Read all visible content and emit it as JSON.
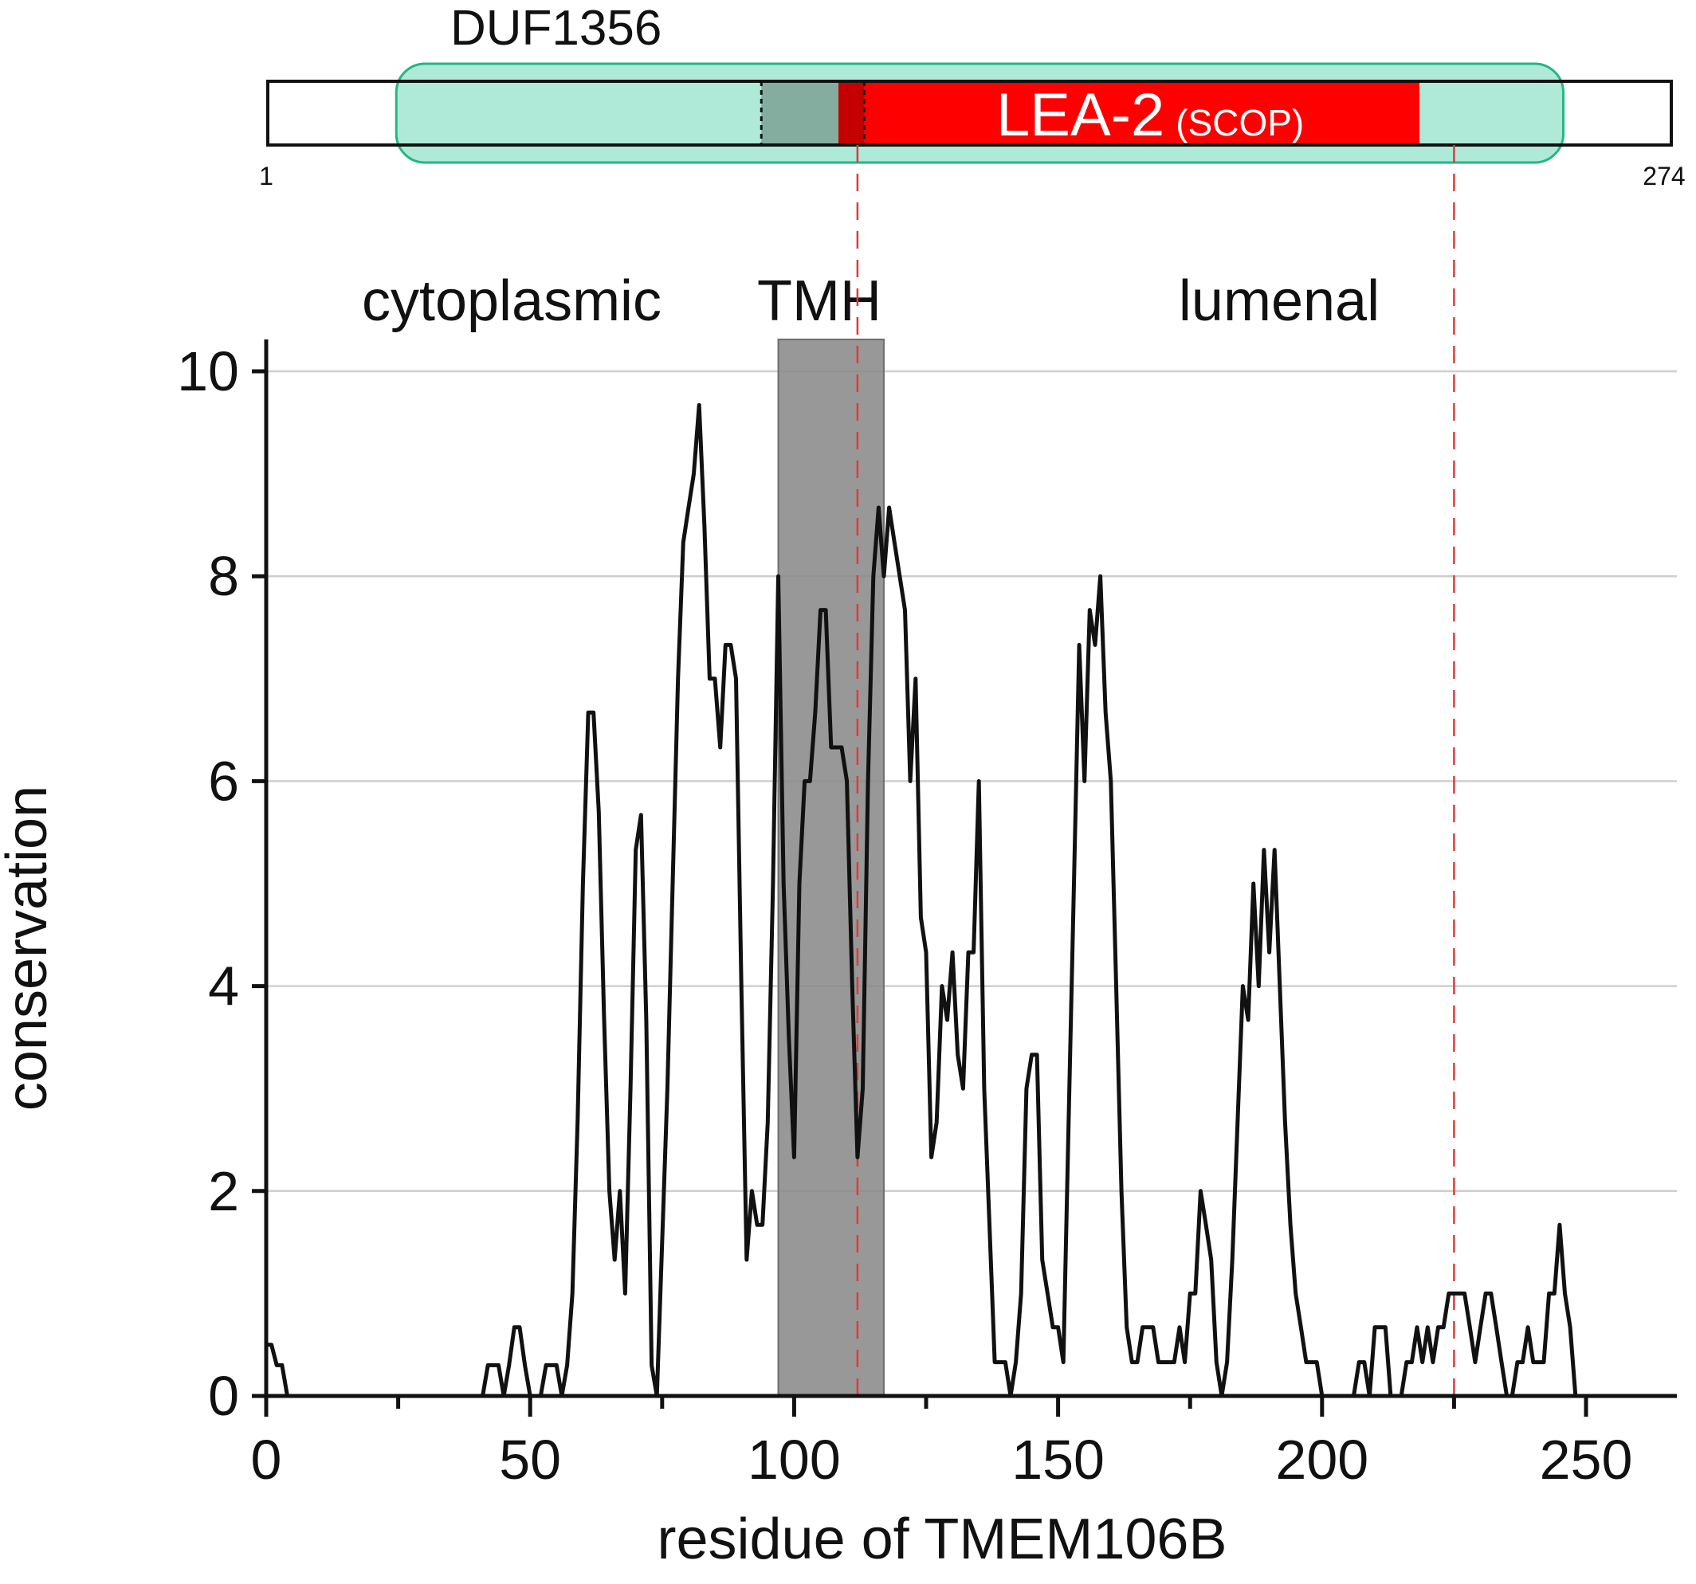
{
  "domain_track": {
    "duf_label": "DUF1356",
    "lea_label": "LEA-2",
    "lea_source": "(SCOP)",
    "start_label": "1",
    "end_label": "274",
    "protein_length": 274,
    "duf_range": [
      26,
      253
    ],
    "lea_range": [
      112,
      225
    ],
    "tm_range": [
      97,
      117
    ],
    "colors": {
      "duf_fill": "#aeead7",
      "duf_border": "#22b783",
      "tm_overlap": "#84ad9f",
      "lea": "#ff0000",
      "lea_tm_overlap": "#c40000",
      "divider": "#e03a3a"
    }
  },
  "region_labels": {
    "cytoplasmic": "cytoplasmic",
    "tmh": "TMH",
    "lumenal": "lumenal"
  },
  "chart_data": {
    "type": "line",
    "title": "",
    "xlabel": "residue of TMEM106B",
    "ylabel": "conservation",
    "xlim": [
      0,
      274
    ],
    "ylim": [
      0,
      10
    ],
    "xticks": [
      0,
      50,
      100,
      150,
      200,
      250
    ],
    "yticks": [
      0,
      2,
      4,
      6,
      8,
      10
    ],
    "grid": "horizontal",
    "shaded_region": {
      "label": "TMH",
      "x": [
        97,
        117
      ],
      "color": "#9a9a9a"
    },
    "reference_lines": [
      112,
      225
    ],
    "series": [
      {
        "color": "#111111",
        "points": [
          [
            0,
            0.5
          ],
          [
            1,
            0.5
          ],
          [
            2,
            0.3
          ],
          [
            3,
            0.3
          ],
          [
            4,
            0
          ],
          [
            40,
            0
          ],
          [
            41,
            0
          ],
          [
            42,
            0.3
          ],
          [
            43,
            0.3
          ],
          [
            44,
            0.3
          ],
          [
            45,
            0
          ],
          [
            46,
            0.3
          ],
          [
            47,
            0.67
          ],
          [
            48,
            0.67
          ],
          [
            49,
            0.3
          ],
          [
            50,
            0
          ],
          [
            52,
            0
          ],
          [
            53,
            0.3
          ],
          [
            54,
            0.3
          ],
          [
            55,
            0.3
          ],
          [
            56,
            0
          ],
          [
            57,
            0.3
          ],
          [
            58,
            1.0
          ],
          [
            59,
            2.7
          ],
          [
            60,
            5.0
          ],
          [
            61,
            6.67
          ],
          [
            62,
            6.67
          ],
          [
            63,
            5.7
          ],
          [
            64,
            3.7
          ],
          [
            65,
            2.0
          ],
          [
            66,
            1.33
          ],
          [
            67,
            2.0
          ],
          [
            68,
            1.0
          ],
          [
            69,
            3.0
          ],
          [
            70,
            5.33
          ],
          [
            71,
            5.67
          ],
          [
            72,
            3.67
          ],
          [
            73,
            0.3
          ],
          [
            74,
            0
          ],
          [
            75,
            1.5
          ],
          [
            76,
            3.0
          ],
          [
            77,
            5.0
          ],
          [
            78,
            7.0
          ],
          [
            79,
            8.33
          ],
          [
            80,
            8.67
          ],
          [
            81,
            9.0
          ],
          [
            82,
            9.67
          ],
          [
            83,
            8.5
          ],
          [
            84,
            7.0
          ],
          [
            85,
            7.0
          ],
          [
            86,
            6.33
          ],
          [
            87,
            7.33
          ],
          [
            88,
            7.33
          ],
          [
            89,
            7.0
          ],
          [
            90,
            4.0
          ],
          [
            91,
            1.33
          ],
          [
            92,
            2.0
          ],
          [
            93,
            1.67
          ],
          [
            94,
            1.67
          ],
          [
            95,
            2.67
          ],
          [
            96,
            5.0
          ],
          [
            97,
            8.0
          ],
          [
            98,
            5.0
          ],
          [
            99,
            3.5
          ],
          [
            100,
            2.33
          ],
          [
            101,
            5.0
          ],
          [
            102,
            6.0
          ],
          [
            103,
            6.0
          ],
          [
            104,
            6.67
          ],
          [
            105,
            7.67
          ],
          [
            106,
            7.67
          ],
          [
            107,
            6.33
          ],
          [
            108,
            6.33
          ],
          [
            109,
            6.33
          ],
          [
            110,
            6.0
          ],
          [
            111,
            4.0
          ],
          [
            112,
            2.33
          ],
          [
            113,
            3.0
          ],
          [
            114,
            6.0
          ],
          [
            115,
            8.0
          ],
          [
            116,
            8.67
          ],
          [
            117,
            8.0
          ],
          [
            118,
            8.67
          ],
          [
            119,
            8.33
          ],
          [
            120,
            8.0
          ],
          [
            121,
            7.67
          ],
          [
            122,
            6.0
          ],
          [
            123,
            7.0
          ],
          [
            124,
            4.67
          ],
          [
            125,
            4.33
          ],
          [
            126,
            2.33
          ],
          [
            127,
            2.67
          ],
          [
            128,
            4.0
          ],
          [
            129,
            3.67
          ],
          [
            130,
            4.33
          ],
          [
            131,
            3.33
          ],
          [
            132,
            3.0
          ],
          [
            133,
            4.33
          ],
          [
            134,
            4.33
          ],
          [
            135,
            6.0
          ],
          [
            136,
            3.0
          ],
          [
            137,
            1.67
          ],
          [
            138,
            0.33
          ],
          [
            139,
            0.33
          ],
          [
            140,
            0.33
          ],
          [
            141,
            0
          ],
          [
            142,
            0.33
          ],
          [
            143,
            1.0
          ],
          [
            144,
            3.0
          ],
          [
            145,
            3.33
          ],
          [
            146,
            3.33
          ],
          [
            147,
            1.33
          ],
          [
            148,
            1.0
          ],
          [
            149,
            0.67
          ],
          [
            150,
            0.67
          ],
          [
            151,
            0.33
          ],
          [
            152,
            2.67
          ],
          [
            153,
            5.0
          ],
          [
            154,
            7.33
          ],
          [
            155,
            6.0
          ],
          [
            156,
            7.67
          ],
          [
            157,
            7.33
          ],
          [
            158,
            8.0
          ],
          [
            159,
            6.67
          ],
          [
            160,
            6.0
          ],
          [
            161,
            4.0
          ],
          [
            162,
            2.0
          ],
          [
            163,
            0.67
          ],
          [
            164,
            0.33
          ],
          [
            165,
            0.33
          ],
          [
            166,
            0.67
          ],
          [
            167,
            0.67
          ],
          [
            168,
            0.67
          ],
          [
            169,
            0.33
          ],
          [
            170,
            0.33
          ],
          [
            171,
            0.33
          ],
          [
            172,
            0.33
          ],
          [
            173,
            0.67
          ],
          [
            174,
            0.33
          ],
          [
            175,
            1.0
          ],
          [
            176,
            1.0
          ],
          [
            177,
            2.0
          ],
          [
            178,
            1.67
          ],
          [
            179,
            1.33
          ],
          [
            180,
            0.33
          ],
          [
            181,
            0
          ],
          [
            182,
            0.33
          ],
          [
            183,
            1.33
          ],
          [
            184,
            2.67
          ],
          [
            185,
            4.0
          ],
          [
            186,
            3.67
          ],
          [
            187,
            5.0
          ],
          [
            188,
            4.0
          ],
          [
            189,
            5.33
          ],
          [
            190,
            4.33
          ],
          [
            191,
            5.33
          ],
          [
            192,
            4.0
          ],
          [
            193,
            2.67
          ],
          [
            194,
            1.67
          ],
          [
            195,
            1.0
          ],
          [
            196,
            0.67
          ],
          [
            197,
            0.33
          ],
          [
            198,
            0.33
          ],
          [
            199,
            0.33
          ],
          [
            200,
            0
          ],
          [
            206,
            0
          ],
          [
            207,
            0.33
          ],
          [
            208,
            0.33
          ],
          [
            209,
            0
          ],
          [
            210,
            0.67
          ],
          [
            211,
            0.67
          ],
          [
            212,
            0.67
          ],
          [
            213,
            0
          ],
          [
            215,
            0
          ],
          [
            216,
            0.33
          ],
          [
            217,
            0.33
          ],
          [
            218,
            0.67
          ],
          [
            219,
            0.33
          ],
          [
            220,
            0.67
          ],
          [
            221,
            0.33
          ],
          [
            222,
            0.67
          ],
          [
            223,
            0.67
          ],
          [
            224,
            1.0
          ],
          [
            225,
            1.0
          ],
          [
            226,
            1.0
          ],
          [
            227,
            1.0
          ],
          [
            228,
            0.67
          ],
          [
            229,
            0.33
          ],
          [
            230,
            0.67
          ],
          [
            231,
            1.0
          ],
          [
            232,
            1.0
          ],
          [
            233,
            0.67
          ],
          [
            234,
            0.33
          ],
          [
            235,
            0
          ],
          [
            236,
            0
          ],
          [
            237,
            0.33
          ],
          [
            238,
            0.33
          ],
          [
            239,
            0.67
          ],
          [
            240,
            0.33
          ],
          [
            241,
            0.33
          ],
          [
            242,
            0.33
          ],
          [
            243,
            1.0
          ],
          [
            244,
            1.0
          ],
          [
            245,
            1.67
          ],
          [
            246,
            1.0
          ],
          [
            247,
            0.67
          ],
          [
            248,
            0
          ]
        ]
      }
    ]
  }
}
